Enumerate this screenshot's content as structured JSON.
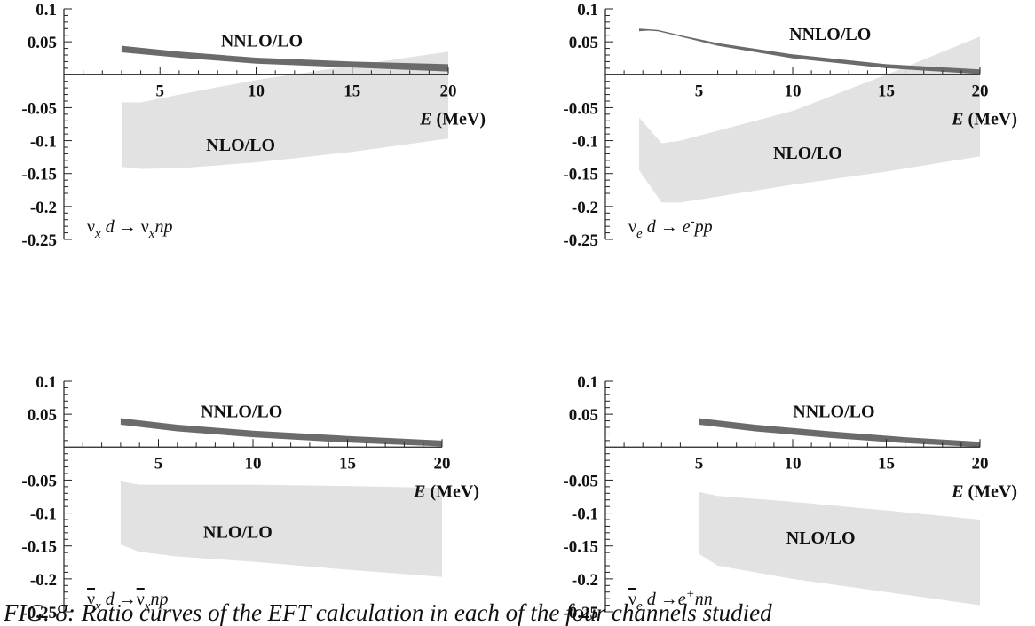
{
  "caption": "FIG. 8: Ratio curves of the EFT calculation in each of the four channels studied",
  "chart_data": [
    {
      "type": "area",
      "process": {
        "parts": [
          {
            "t": "ν",
            "cls": "up"
          },
          {
            "t": "x",
            "sub": true
          },
          {
            "t": " d "
          },
          {
            "t": "→",
            "cls": "up"
          },
          {
            "t": " ν",
            "cls": "up"
          },
          {
            "t": "x",
            "sub": true
          },
          {
            "t": "np"
          }
        ]
      },
      "xlabel": {
        "var": "E",
        "unit": " (MeV)"
      },
      "xlim": [
        0,
        20
      ],
      "ylim": [
        -0.25,
        0.1
      ],
      "xticks": [
        5,
        10,
        15,
        20
      ],
      "yticks": [
        0.1,
        0.05,
        -0.05,
        -0.1,
        -0.15,
        -0.2,
        -0.25
      ],
      "tick_labels_y": [
        "0.1",
        "0.05",
        "-0.05",
        "-0.1",
        "-0.15",
        "-0.2",
        "-0.25"
      ],
      "tick_labels_x": [
        "5",
        "10",
        "15",
        "20"
      ],
      "series": [
        {
          "name": "NNLO/LO",
          "color": "#6b6b6b",
          "x": [
            3,
            6,
            10,
            15,
            20
          ],
          "upper": [
            0.044,
            0.035,
            0.026,
            0.02,
            0.016
          ],
          "lower": [
            0.034,
            0.026,
            0.017,
            0.011,
            0.005
          ]
        },
        {
          "name": "NLO/LO",
          "color": "#e2e2e2",
          "x": [
            3,
            4,
            6,
            10,
            15,
            20
          ],
          "upper": [
            -0.042,
            -0.042,
            -0.03,
            -0.008,
            0.014,
            0.035
          ],
          "lower": [
            -0.14,
            -0.143,
            -0.142,
            -0.133,
            -0.117,
            -0.097
          ]
        }
      ],
      "labels": [
        {
          "text": "NNLO/LO",
          "x": 10.3,
          "y": 0.052
        },
        {
          "text": "NLO/LO",
          "x": 9.2,
          "y": -0.106
        }
      ]
    },
    {
      "type": "area",
      "process": {
        "parts": [
          {
            "t": "ν",
            "cls": "up"
          },
          {
            "t": "e",
            "sub": true
          },
          {
            "t": " d "
          },
          {
            "t": "→",
            "cls": "up"
          },
          {
            "t": " e"
          },
          {
            "t": "-",
            "sup": true
          },
          {
            "t": "pp"
          }
        ]
      },
      "xlabel": {
        "var": "E",
        "unit": " (MeV)"
      },
      "xlim": [
        0,
        20
      ],
      "ylim": [
        -0.25,
        0.1
      ],
      "xticks": [
        5,
        10,
        15,
        20
      ],
      "yticks": [
        0.1,
        0.05,
        -0.05,
        -0.1,
        -0.15,
        -0.2,
        -0.25
      ],
      "tick_labels_y": [
        "0.1",
        "0.05",
        "-0.05",
        "-0.1",
        "-0.15",
        "-0.2",
        "-0.25"
      ],
      "tick_labels_x": [
        "5",
        "10",
        "15",
        "20"
      ],
      "series": [
        {
          "name": "NNLO/LO",
          "color": "#6b6b6b",
          "x": [
            1.8,
            2.3,
            2.8,
            4,
            6,
            10,
            15,
            20
          ],
          "upper": [
            0.07,
            0.069,
            0.068,
            0.06,
            0.048,
            0.031,
            0.016,
            0.008
          ],
          "lower": [
            0.066,
            0.067,
            0.066,
            0.058,
            0.044,
            0.025,
            0.01,
            0.001
          ]
        },
        {
          "name": "NLO/LO",
          "color": "#e2e2e2",
          "x": [
            1.8,
            3,
            4,
            10,
            15,
            20
          ],
          "upper": [
            -0.065,
            -0.104,
            -0.1,
            -0.055,
            -0.0,
            0.058
          ],
          "lower": [
            -0.145,
            -0.194,
            -0.194,
            -0.167,
            -0.147,
            -0.124
          ]
        }
      ],
      "labels": [
        {
          "text": "NNLO/LO",
          "x": 12.0,
          "y": 0.062
        },
        {
          "text": "NLO/LO",
          "x": 10.8,
          "y": -0.118
        }
      ]
    },
    {
      "type": "area",
      "process": {
        "parts": [
          {
            "t": "ν",
            "cls": "up",
            "bar": true
          },
          {
            "t": "x",
            "sub": true
          },
          {
            "t": " d "
          },
          {
            "t": "→",
            "cls": "up"
          },
          {
            "t": "ν",
            "cls": "up",
            "bar": true
          },
          {
            "t": "x",
            "sub": true
          },
          {
            "t": "np"
          }
        ]
      },
      "xlabel": {
        "var": "E",
        "unit": " (MeV)"
      },
      "xlim": [
        0,
        20
      ],
      "ylim": [
        -0.25,
        0.1
      ],
      "xticks": [
        5,
        10,
        15,
        20
      ],
      "yticks": [
        0.1,
        0.05,
        -0.05,
        -0.1,
        -0.15,
        -0.2,
        -0.25
      ],
      "tick_labels_y": [
        "0.1",
        "0.05",
        "-0.05",
        "-0.1",
        "-0.15",
        "-0.2",
        "-0.25"
      ],
      "tick_labels_x": [
        "5",
        "10",
        "15",
        "20"
      ],
      "series": [
        {
          "name": "NNLO/LO",
          "color": "#6b6b6b",
          "x": [
            3,
            6,
            10,
            15,
            20
          ],
          "upper": [
            0.044,
            0.034,
            0.025,
            0.017,
            0.01
          ],
          "lower": [
            0.034,
            0.024,
            0.015,
            0.007,
            0.001
          ]
        },
        {
          "name": "NLO/LO",
          "color": "#e2e2e2",
          "x": [
            3,
            4,
            6,
            10,
            15,
            20
          ],
          "upper": [
            -0.052,
            -0.057,
            -0.057,
            -0.057,
            -0.059,
            -0.062
          ],
          "lower": [
            -0.148,
            -0.159,
            -0.166,
            -0.174,
            -0.186,
            -0.197
          ]
        }
      ],
      "labels": [
        {
          "text": "NNLO/LO",
          "x": 9.4,
          "y": 0.055
        },
        {
          "text": "NLO/LO",
          "x": 9.2,
          "y": -0.128
        }
      ]
    },
    {
      "type": "area",
      "process": {
        "parts": [
          {
            "t": "ν",
            "cls": "up",
            "bar": true
          },
          {
            "t": "e",
            "sub": true
          },
          {
            "t": " d "
          },
          {
            "t": "→",
            "cls": "up"
          },
          {
            "t": "e"
          },
          {
            "t": "+",
            "sup": true
          },
          {
            "t": "nn"
          }
        ]
      },
      "xlabel": {
        "var": "E",
        "unit": " (MeV)"
      },
      "xlim": [
        0,
        20
      ],
      "ylim": [
        -0.25,
        0.1
      ],
      "xticks": [
        5,
        10,
        15,
        20
      ],
      "yticks": [
        0.1,
        0.05,
        -0.05,
        -0.1,
        -0.15,
        -0.2,
        -0.25
      ],
      "tick_labels_y": [
        "0.1",
        "0.05",
        "-0.05",
        "-0.1",
        "-0.15",
        "-0.2",
        "-0.25"
      ],
      "tick_labels_x": [
        "5",
        "10",
        "15",
        "20"
      ],
      "series": [
        {
          "name": "NNLO/LO",
          "color": "#6b6b6b",
          "x": [
            5,
            8,
            12,
            16,
            20
          ],
          "upper": [
            0.044,
            0.034,
            0.024,
            0.015,
            0.008
          ],
          "lower": [
            0.034,
            0.024,
            0.014,
            0.006,
            0.0
          ]
        },
        {
          "name": "NLO/LO",
          "color": "#e2e2e2",
          "x": [
            5,
            6,
            10,
            15,
            20
          ],
          "upper": [
            -0.068,
            -0.074,
            -0.083,
            -0.096,
            -0.11
          ],
          "lower": [
            -0.162,
            -0.18,
            -0.2,
            -0.22,
            -0.24
          ]
        }
      ],
      "labels": [
        {
          "text": "NNLO/LO",
          "x": 12.2,
          "y": 0.055
        },
        {
          "text": "NLO/LO",
          "x": 11.5,
          "y": -0.137
        }
      ]
    }
  ]
}
